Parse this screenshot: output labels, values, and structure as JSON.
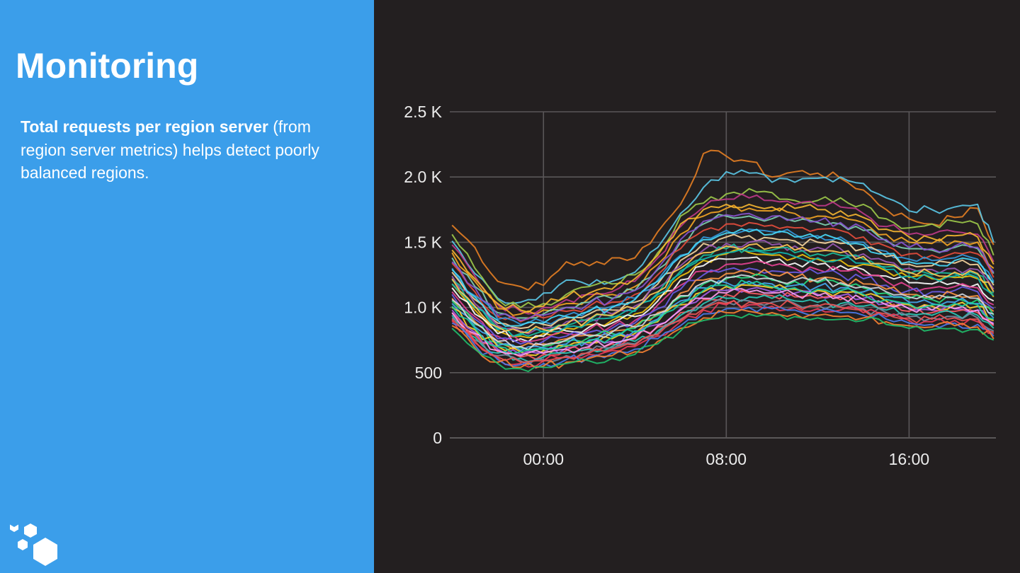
{
  "slide": {
    "title": "Monitoring",
    "description_bold": "Total requests per region server",
    "description_rest": " (from region server metrics) helps detect poorly balanced regions."
  },
  "logo": {
    "icon": "hexagon-cluster-icon"
  },
  "colors": {
    "left_panel": "#3b9eea",
    "chart_background": "#231f20",
    "grid": "#5a5758",
    "tick_text": "#ececec"
  },
  "chart_data": {
    "type": "line",
    "title": "",
    "xlabel": "",
    "ylabel": "",
    "x_ticks": [
      "00:00",
      "08:00",
      "16:00"
    ],
    "y_ticks": [
      "0",
      "500",
      "1.0 K",
      "1.5 K",
      "2.0 K",
      "2.5 K"
    ],
    "ylim": [
      0,
      2500
    ],
    "xlim_hours": [
      -4.1,
      19.8
    ],
    "grid": true,
    "legend": "none",
    "note": "many overlapping region-server series; approximate envelope",
    "x": [
      -4,
      -3,
      -2,
      -1,
      0,
      1,
      2,
      3,
      4,
      5,
      6,
      7,
      8,
      9,
      10,
      11,
      12,
      13,
      14,
      15,
      16,
      17,
      18,
      19,
      19.7
    ],
    "series": [
      {
        "values": [
          1630,
          1460,
          1200,
          1160,
          1170,
          1350,
          1320,
          1380,
          1380,
          1580,
          1790,
          2180,
          2160,
          2120,
          2000,
          2040,
          2030,
          1990,
          1900,
          1750,
          1680,
          1640,
          1690,
          1760,
          1480
        ]
      },
      {
        "values": [
          1510,
          1260,
          1070,
          1040,
          1110,
          1210,
          1170,
          1200,
          1270,
          1460,
          1720,
          1920,
          2040,
          2030,
          1960,
          1960,
          1990,
          2000,
          1950,
          1840,
          1740,
          1750,
          1770,
          1790,
          1500
        ]
      },
      {
        "values": [
          1560,
          1300,
          1060,
          1000,
          1030,
          1100,
          1160,
          1180,
          1250,
          1420,
          1700,
          1800,
          1870,
          1910,
          1880,
          1820,
          1820,
          1840,
          1790,
          1680,
          1610,
          1640,
          1660,
          1640,
          1400
        ]
      },
      {
        "values": [
          1480,
          1240,
          1020,
          970,
          1000,
          1060,
          1100,
          1120,
          1200,
          1380,
          1620,
          1770,
          1830,
          1840,
          1820,
          1790,
          1780,
          1770,
          1720,
          1620,
          1560,
          1560,
          1580,
          1560,
          1350
        ]
      },
      {
        "values": [
          1420,
          1200,
          990,
          950,
          980,
          1030,
          1070,
          1100,
          1160,
          1330,
          1560,
          1700,
          1760,
          1760,
          1740,
          1720,
          1700,
          1700,
          1650,
          1560,
          1500,
          1490,
          1510,
          1500,
          1300
        ]
      },
      {
        "values": [
          1380,
          1160,
          960,
          920,
          950,
          1000,
          1040,
          1070,
          1130,
          1290,
          1500,
          1640,
          1700,
          1700,
          1680,
          1660,
          1650,
          1640,
          1590,
          1510,
          1450,
          1440,
          1460,
          1450,
          1260
        ]
      },
      {
        "values": [
          1340,
          1120,
          930,
          890,
          920,
          970,
          1010,
          1040,
          1100,
          1250,
          1450,
          1590,
          1640,
          1650,
          1630,
          1610,
          1600,
          1590,
          1540,
          1470,
          1410,
          1400,
          1420,
          1410,
          1230
        ]
      },
      {
        "values": [
          1300,
          1090,
          910,
          870,
          890,
          940,
          980,
          1010,
          1070,
          1210,
          1400,
          1540,
          1590,
          1600,
          1580,
          1560,
          1550,
          1540,
          1500,
          1430,
          1370,
          1360,
          1380,
          1370,
          1200
        ]
      },
      {
        "values": [
          1270,
          1060,
          880,
          840,
          870,
          920,
          950,
          980,
          1040,
          1180,
          1360,
          1490,
          1540,
          1550,
          1530,
          1510,
          1500,
          1490,
          1450,
          1390,
          1330,
          1320,
          1340,
          1330,
          1170
        ]
      },
      {
        "values": [
          1240,
          1030,
          860,
          820,
          840,
          890,
          920,
          950,
          1010,
          1150,
          1320,
          1440,
          1490,
          1500,
          1480,
          1470,
          1460,
          1450,
          1410,
          1350,
          1300,
          1290,
          1300,
          1290,
          1140
        ]
      },
      {
        "values": [
          1210,
          1000,
          840,
          800,
          820,
          860,
          900,
          930,
          980,
          1110,
          1280,
          1400,
          1450,
          1460,
          1440,
          1420,
          1410,
          1400,
          1370,
          1310,
          1260,
          1250,
          1260,
          1250,
          1110
        ]
      },
      {
        "values": [
          1180,
          980,
          820,
          780,
          800,
          840,
          870,
          900,
          950,
          1080,
          1240,
          1360,
          1410,
          1420,
          1400,
          1380,
          1370,
          1360,
          1330,
          1280,
          1230,
          1220,
          1230,
          1220,
          1080
        ]
      },
      {
        "values": [
          1150,
          950,
          800,
          760,
          780,
          820,
          850,
          880,
          930,
          1050,
          1210,
          1320,
          1370,
          1380,
          1360,
          1340,
          1330,
          1320,
          1290,
          1240,
          1190,
          1180,
          1190,
          1180,
          1050
        ]
      },
      {
        "values": [
          1120,
          930,
          780,
          740,
          760,
          800,
          830,
          860,
          900,
          1020,
          1170,
          1280,
          1330,
          1340,
          1320,
          1300,
          1290,
          1280,
          1250,
          1200,
          1160,
          1150,
          1160,
          1150,
          1020
        ]
      },
      {
        "values": [
          1100,
          910,
          760,
          720,
          740,
          780,
          810,
          840,
          880,
          990,
          1140,
          1250,
          1290,
          1300,
          1280,
          1270,
          1260,
          1250,
          1220,
          1170,
          1130,
          1120,
          1130,
          1120,
          990
        ]
      },
      {
        "values": [
          1070,
          890,
          740,
          700,
          720,
          760,
          790,
          820,
          860,
          960,
          1110,
          1210,
          1260,
          1270,
          1250,
          1230,
          1220,
          1210,
          1180,
          1140,
          1100,
          1090,
          1100,
          1090,
          970
        ]
      },
      {
        "values": [
          1050,
          870,
          730,
          690,
          700,
          740,
          770,
          800,
          840,
          940,
          1080,
          1180,
          1220,
          1230,
          1210,
          1200,
          1190,
          1180,
          1150,
          1110,
          1070,
          1060,
          1070,
          1060,
          940
        ]
      },
      {
        "values": [
          1030,
          850,
          710,
          670,
          690,
          720,
          750,
          780,
          820,
          910,
          1050,
          1150,
          1190,
          1200,
          1180,
          1170,
          1160,
          1150,
          1120,
          1080,
          1040,
          1030,
          1040,
          1030,
          920
        ]
      },
      {
        "values": [
          1000,
          830,
          700,
          660,
          670,
          700,
          730,
          760,
          800,
          890,
          1020,
          1120,
          1160,
          1170,
          1150,
          1140,
          1130,
          1120,
          1090,
          1050,
          1020,
          1010,
          1020,
          1010,
          900
        ]
      },
      {
        "values": [
          980,
          810,
          680,
          640,
          650,
          690,
          710,
          740,
          780,
          870,
          990,
          1090,
          1130,
          1140,
          1120,
          1110,
          1100,
          1090,
          1070,
          1030,
          990,
          980,
          990,
          980,
          880
        ]
      },
      {
        "values": [
          960,
          790,
          660,
          620,
          640,
          670,
          690,
          720,
          760,
          850,
          960,
          1060,
          1100,
          1110,
          1090,
          1080,
          1070,
          1060,
          1040,
          1000,
          970,
          960,
          970,
          960,
          860
        ]
      },
      {
        "values": [
          940,
          770,
          650,
          610,
          620,
          650,
          680,
          700,
          740,
          820,
          940,
          1030,
          1070,
          1080,
          1070,
          1050,
          1040,
          1030,
          1010,
          980,
          950,
          940,
          950,
          940,
          840
        ]
      },
      {
        "values": [
          920,
          750,
          630,
          590,
          600,
          630,
          660,
          690,
          720,
          800,
          910,
          1000,
          1040,
          1050,
          1040,
          1030,
          1020,
          1010,
          990,
          960,
          930,
          920,
          930,
          920,
          820
        ]
      },
      {
        "values": [
          900,
          730,
          610,
          570,
          590,
          620,
          640,
          670,
          700,
          780,
          890,
          980,
          1020,
          1020,
          1010,
          1000,
          990,
          980,
          960,
          930,
          900,
          890,
          900,
          890,
          800
        ]
      },
      {
        "values": [
          880,
          710,
          600,
          560,
          570,
          600,
          620,
          650,
          680,
          760,
          860,
          950,
          990,
          1000,
          990,
          980,
          970,
          960,
          940,
          910,
          880,
          870,
          880,
          870,
          780
        ]
      },
      {
        "values": [
          860,
          690,
          580,
          540,
          550,
          580,
          610,
          630,
          660,
          740,
          840,
          920,
          960,
          970,
          960,
          950,
          940,
          930,
          920,
          890,
          860,
          850,
          860,
          850,
          760
        ]
      },
      {
        "values": [
          840,
          680,
          570,
          530,
          540,
          570,
          590,
          610,
          640,
          720,
          820,
          900,
          940,
          950,
          940,
          930,
          920,
          910,
          900,
          870,
          840,
          830,
          840,
          830,
          750
        ]
      },
      {
        "values": [
          1440,
          1220,
          1030,
          980,
          1010,
          1080,
          1110,
          1140,
          1220,
          1400,
          1640,
          1750,
          1790,
          1790,
          1770,
          1760,
          1750,
          1740,
          1690,
          1600,
          1540,
          1530,
          1550,
          1540,
          1330
        ]
      },
      {
        "values": [
          1350,
          1150,
          940,
          900,
          940,
          1000,
          1030,
          1060,
          1130,
          1300,
          1520,
          1660,
          1710,
          1720,
          1700,
          1680,
          1660,
          1650,
          1610,
          1520,
          1460,
          1450,
          1470,
          1460,
          1270
        ]
      },
      {
        "values": [
          1180,
          1000,
          830,
          790,
          810,
          850,
          890,
          920,
          970,
          1100,
          1260,
          1370,
          1420,
          1430,
          1410,
          1390,
          1380,
          1370,
          1340,
          1290,
          1240,
          1230,
          1240,
          1230,
          1090
        ]
      },
      {
        "values": [
          1060,
          880,
          740,
          700,
          710,
          750,
          780,
          810,
          850,
          950,
          1090,
          1190,
          1230,
          1240,
          1220,
          1210,
          1200,
          1190,
          1160,
          1120,
          1080,
          1070,
          1080,
          1070,
          950
        ]
      },
      {
        "values": [
          960,
          800,
          670,
          630,
          650,
          680,
          700,
          730,
          770,
          860,
          980,
          1070,
          1110,
          1120,
          1110,
          1100,
          1090,
          1080,
          1060,
          1020,
          990,
          980,
          990,
          980,
          870
        ]
      },
      {
        "values": [
          1220,
          1010,
          850,
          810,
          830,
          870,
          910,
          940,
          990,
          1120,
          1300,
          1420,
          1470,
          1480,
          1460,
          1440,
          1430,
          1420,
          1390,
          1330,
          1270,
          1260,
          1270,
          1260,
          1120
        ]
      },
      {
        "values": [
          1290,
          1080,
          900,
          860,
          880,
          930,
          970,
          1000,
          1060,
          1200,
          1390,
          1520,
          1570,
          1580,
          1560,
          1540,
          1530,
          1520,
          1480,
          1410,
          1350,
          1340,
          1360,
          1350,
          1190
        ]
      },
      {
        "values": [
          1010,
          840,
          700,
          660,
          680,
          710,
          740,
          770,
          810,
          900,
          1030,
          1130,
          1170,
          1180,
          1160,
          1150,
          1140,
          1130,
          1100,
          1060,
          1030,
          1020,
          1030,
          1020,
          910
        ]
      },
      {
        "values": [
          910,
          740,
          620,
          580,
          590,
          620,
          650,
          680,
          710,
          790,
          900,
          990,
          1030,
          1040,
          1030,
          1020,
          1010,
          1000,
          980,
          950,
          920,
          910,
          920,
          910,
          810
        ]
      }
    ]
  }
}
